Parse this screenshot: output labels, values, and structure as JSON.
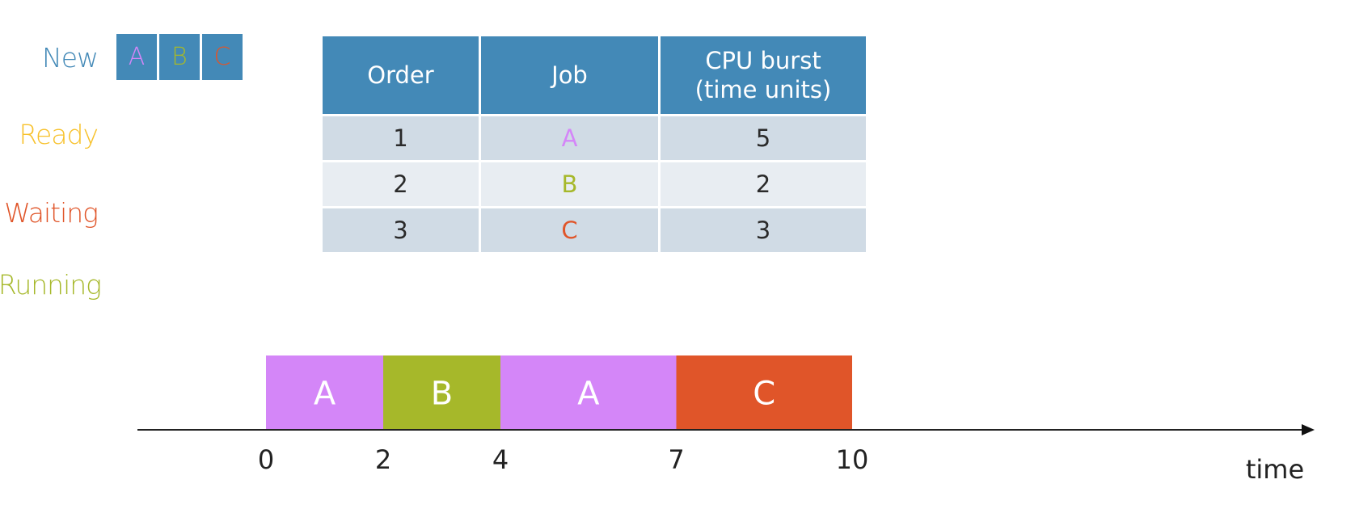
{
  "states": {
    "new": {
      "label": "New",
      "color": "#4389b7"
    },
    "ready": {
      "label": "Ready",
      "color": "#f7c12b"
    },
    "waiting": {
      "label": "Waiting",
      "color": "#e05529"
    },
    "running": {
      "label": "Running",
      "color": "#a6b82a"
    }
  },
  "new_queue": [
    {
      "label": "A",
      "color": "#d486f8"
    },
    {
      "label": "B",
      "color": "#a6b82a"
    },
    {
      "label": "C",
      "color": "#e05529"
    }
  ],
  "table": {
    "headers": {
      "order": "Order",
      "job": "Job",
      "burst_line1": "CPU burst",
      "burst_line2": "(time units)"
    },
    "rows": [
      {
        "order": "1",
        "job": "A",
        "burst": "5",
        "job_color": "#d486f8"
      },
      {
        "order": "2",
        "job": "B",
        "burst": "2",
        "job_color": "#a6b82a"
      },
      {
        "order": "3",
        "job": "C",
        "burst": "3",
        "job_color": "#e05529"
      }
    ]
  },
  "gantt": {
    "segments": [
      {
        "job": "A",
        "start": 0,
        "end": 2,
        "color": "#d486f8"
      },
      {
        "job": "B",
        "start": 2,
        "end": 4,
        "color": "#a6b82a"
      },
      {
        "job": "A",
        "start": 4,
        "end": 7,
        "color": "#d486f8"
      },
      {
        "job": "C",
        "start": 7,
        "end": 10,
        "color": "#e05529"
      }
    ],
    "ticks": [
      "0",
      "2",
      "4",
      "7",
      "10"
    ],
    "axis_label": "time"
  }
}
